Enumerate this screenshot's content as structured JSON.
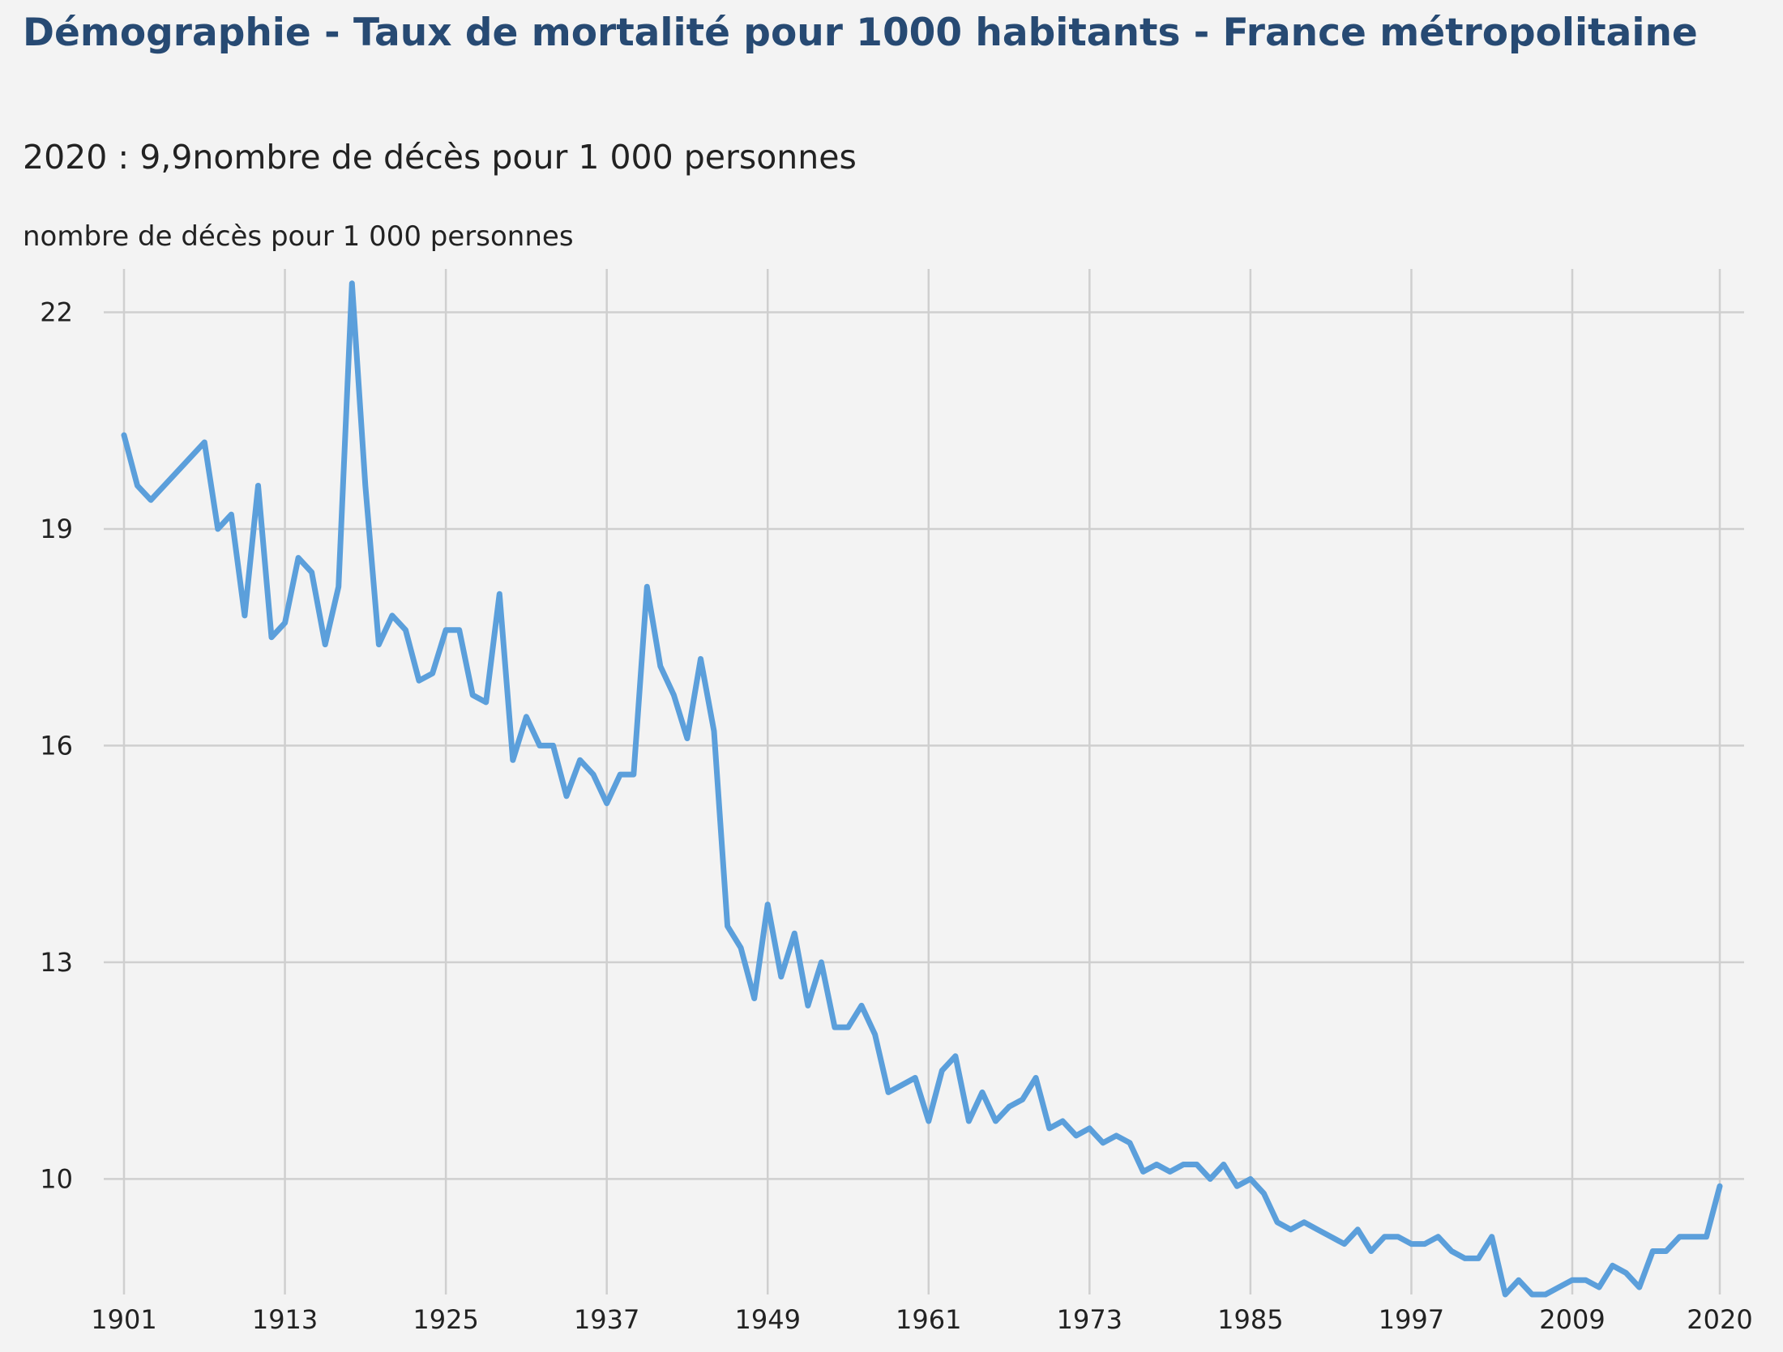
{
  "title": "Démographie - Taux de mortalité pour 1000 habitants - France métropolitaine",
  "subtitle": "2020 : 9,9nombre de décès pour 1 000 personnes",
  "colors": {
    "title": "#274a73",
    "series": "#5b9fdb",
    "grid": "#cfcfcf",
    "background": "#f3f3f3"
  },
  "chart_data": {
    "type": "line",
    "title": "Démographie - Taux de mortalité pour 1000 habitants - France métropolitaine",
    "ylabel": "nombre de décès pour 1 000 personnes",
    "xlabel": "",
    "grid": true,
    "xlim": [
      1901,
      2020
    ],
    "ylim": [
      8.4,
      22.6
    ],
    "x_ticks": [
      1901,
      1913,
      1925,
      1937,
      1949,
      1961,
      1973,
      1985,
      1997,
      2009,
      2020
    ],
    "y_ticks": [
      10,
      13,
      16,
      19,
      22
    ],
    "series": [
      {
        "name": "Taux de mortalité",
        "x": [
          1901,
          1902,
          1903,
          1907,
          1908,
          1909,
          1910,
          1911,
          1912,
          1913,
          1914,
          1915,
          1916,
          1917,
          1918,
          1919,
          1920,
          1921,
          1922,
          1923,
          1924,
          1925,
          1926,
          1927,
          1928,
          1929,
          1930,
          1931,
          1932,
          1933,
          1934,
          1935,
          1936,
          1937,
          1938,
          1939,
          1940,
          1941,
          1942,
          1943,
          1944,
          1945,
          1946,
          1947,
          1948,
          1949,
          1950,
          1951,
          1952,
          1953,
          1954,
          1955,
          1956,
          1957,
          1958,
          1959,
          1960,
          1961,
          1962,
          1963,
          1964,
          1965,
          1966,
          1967,
          1968,
          1969,
          1970,
          1971,
          1972,
          1973,
          1974,
          1975,
          1976,
          1977,
          1978,
          1979,
          1980,
          1981,
          1982,
          1983,
          1984,
          1985,
          1986,
          1987,
          1988,
          1989,
          1990,
          1991,
          1992,
          1993,
          1994,
          1995,
          1996,
          1997,
          1998,
          1999,
          2000,
          2001,
          2002,
          2003,
          2004,
          2005,
          2006,
          2007,
          2008,
          2009,
          2010,
          2011,
          2012,
          2013,
          2014,
          2015,
          2016,
          2017,
          2018,
          2019,
          2020
        ],
        "values": [
          20.3,
          19.6,
          19.4,
          20.2,
          19.0,
          19.2,
          17.8,
          19.6,
          17.5,
          17.7,
          18.6,
          18.4,
          17.4,
          18.2,
          22.4,
          19.6,
          17.4,
          17.8,
          17.6,
          16.9,
          17.0,
          17.6,
          17.6,
          16.7,
          16.6,
          18.1,
          15.8,
          16.4,
          16.0,
          16.0,
          15.3,
          15.8,
          15.6,
          15.2,
          15.6,
          15.6,
          18.2,
          17.1,
          16.7,
          16.1,
          17.2,
          16.2,
          13.5,
          13.2,
          12.5,
          13.8,
          12.8,
          13.4,
          12.4,
          13.0,
          12.1,
          12.1,
          12.4,
          12.0,
          11.2,
          11.3,
          11.4,
          10.8,
          11.5,
          11.7,
          10.8,
          11.2,
          10.8,
          11.0,
          11.1,
          11.4,
          10.7,
          10.8,
          10.6,
          10.7,
          10.5,
          10.6,
          10.5,
          10.1,
          10.2,
          10.1,
          10.2,
          10.2,
          10.0,
          10.2,
          9.9,
          10.0,
          9.8,
          9.4,
          9.3,
          9.4,
          9.3,
          9.2,
          9.1,
          9.3,
          9.0,
          9.2,
          9.2,
          9.1,
          9.1,
          9.2,
          9.0,
          8.9,
          8.9,
          9.2,
          8.4,
          8.6,
          8.4,
          8.4,
          8.5,
          8.6,
          8.6,
          8.5,
          8.8,
          8.7,
          8.5,
          9.0,
          9.0,
          9.2,
          9.2,
          9.2,
          9.9
        ]
      }
    ]
  }
}
